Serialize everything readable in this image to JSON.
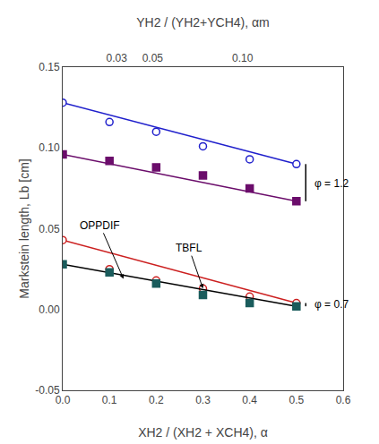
{
  "chart_data": {
    "type": "line",
    "xlabel": "XH2 / (XH2 + XCH4), α",
    "x2label": "YH2 / (YH2+YCH4), αm",
    "ylabel": "Markstein length, Lb [cm]",
    "xlim": [
      0,
      0.6
    ],
    "xticks": [
      {
        "value": 0.0,
        "label": "0.0"
      },
      0.1,
      0.2,
      0.3,
      0.4,
      0.5,
      0.6
    ],
    "x2lim": [
      0,
      0.156
    ],
    "x2ticks": [
      0.03,
      0.05,
      {
        "value": 0.1,
        "label": "0.10"
      }
    ],
    "ylim": [
      -0.05,
      0.15
    ],
    "yticks": [
      -0.05,
      {
        "value": 0.0,
        "label": "0.00"
      },
      0.05,
      {
        "value": 0.1,
        "label": "0.10"
      },
      0.15
    ],
    "grid": false,
    "series": [
      {
        "x": [
          0.0,
          0.1,
          0.2,
          0.3,
          0.4,
          0.5
        ],
        "values": [
          0.128,
          0.116,
          0.11,
          0.101,
          0.093,
          0.09
        ],
        "color": "#2020cc",
        "marker": "open circle",
        "line": {
          "x": [
            0.0,
            0.5
          ],
          "values": [
            0.128,
            0.09
          ],
          "color": "#2020cc"
        }
      },
      {
        "x": [
          0.0,
          0.1,
          0.2,
          0.3,
          0.4,
          0.5
        ],
        "values": [
          0.096,
          0.092,
          0.088,
          0.083,
          0.075,
          0.067
        ],
        "color": "#6b0d6b",
        "marker": "square",
        "line": {
          "x": [
            0.0,
            0.5
          ],
          "values": [
            0.096,
            0.067
          ],
          "color": "#6b0d6b"
        }
      },
      {
        "x": [
          0.0,
          0.1,
          0.2,
          0.3,
          0.4,
          0.5
        ],
        "values": [
          0.043,
          0.025,
          0.018,
          0.013,
          0.008,
          0.004
        ],
        "color": "#cc2020",
        "marker": "open circle",
        "line": {
          "x": [
            0.0,
            0.5
          ],
          "values": [
            0.043,
            0.004
          ],
          "color": "#cc2020"
        }
      },
      {
        "x": [
          0.0,
          0.1,
          0.2,
          0.3,
          0.4,
          0.5
        ],
        "values": [
          0.028,
          0.023,
          0.016,
          0.009,
          0.004,
          0.002
        ],
        "color": "#1a5c5c",
        "marker": "square",
        "line": {
          "x": [
            0.0,
            0.5
          ],
          "values": [
            0.028,
            0.002
          ],
          "color": "black"
        }
      }
    ],
    "annotations": [
      {
        "text": "OPPDIF",
        "x": 0.08,
        "y": 0.052,
        "arrow_to": [
          0.13,
          0.019
        ]
      },
      {
        "text": "TBFL",
        "x": 0.27,
        "y": 0.038,
        "arrow_to": [
          0.3,
          0.013
        ]
      },
      {
        "text": "φ = 1.2",
        "x": 0.535,
        "y": 0.078,
        "bracket": {
          "x": 0.52,
          "y": [
            0.067,
            0.09
          ]
        }
      },
      {
        "text": "φ = 0.7",
        "x": 0.535,
        "y": 0.003,
        "bracket": {
          "x": 0.52,
          "y": [
            0.002,
            0.004
          ]
        }
      }
    ]
  }
}
